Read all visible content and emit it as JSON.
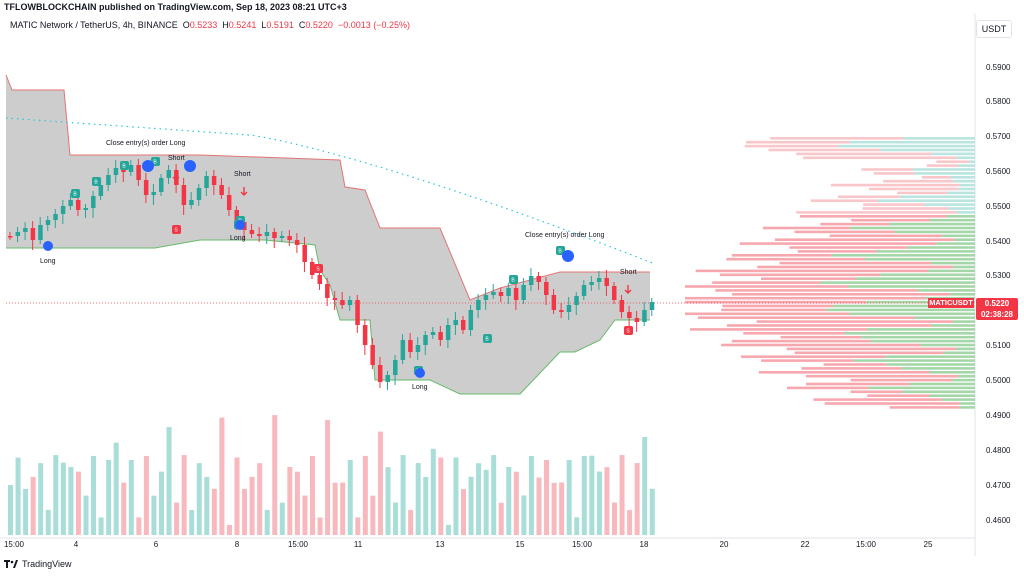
{
  "header": {
    "publish_line": "TFLOWBLOCKCHAIN published on TradingView.com, Sep 18, 2023 08:21 UTC+3"
  },
  "legend": {
    "symbol": "MATIC Network / TetherUS, 4h, BINANCE",
    "o_label": "O",
    "o_value": "0.5233",
    "h_label": "H",
    "h_value": "0.5241",
    "l_label": "L",
    "l_value": "0.5191",
    "c_label": "C",
    "c_value": "0.5220",
    "change": "−0.0013 (−0.25%)"
  },
  "currency": "USDT",
  "price_axis": [
    "0.5900",
    "0.5800",
    "0.5700",
    "0.5600",
    "0.5500",
    "0.5400",
    "0.5300",
    "0.5100",
    "0.5000",
    "0.4900",
    "0.4800",
    "0.4700",
    "0.4600"
  ],
  "current_price": {
    "symbol_tag": "MATICUSDT",
    "price": "0.5220",
    "countdown": "02:38:28"
  },
  "time_axis": [
    "15:00",
    "4",
    "6",
    "8",
    "15:00",
    "11",
    "13",
    "15",
    "15:00",
    "18",
    "20",
    "22",
    "15:00",
    "25"
  ],
  "annotations": {
    "close_long_1": "Close entry(s) order Long",
    "close_long_2": "Close entry(s) order Long",
    "short_1": "Short",
    "short_2": "Short",
    "short_3": "Short",
    "long_1": "Long",
    "long_2": "Long",
    "long_3": "Long"
  },
  "footer": {
    "brand": "TradingView"
  },
  "colors": {
    "up": "#26a69a",
    "down": "#f23645",
    "band": "#b2b5be",
    "profile_up": "#a5d6a7",
    "profile_down": "#f7a8ae"
  }
}
